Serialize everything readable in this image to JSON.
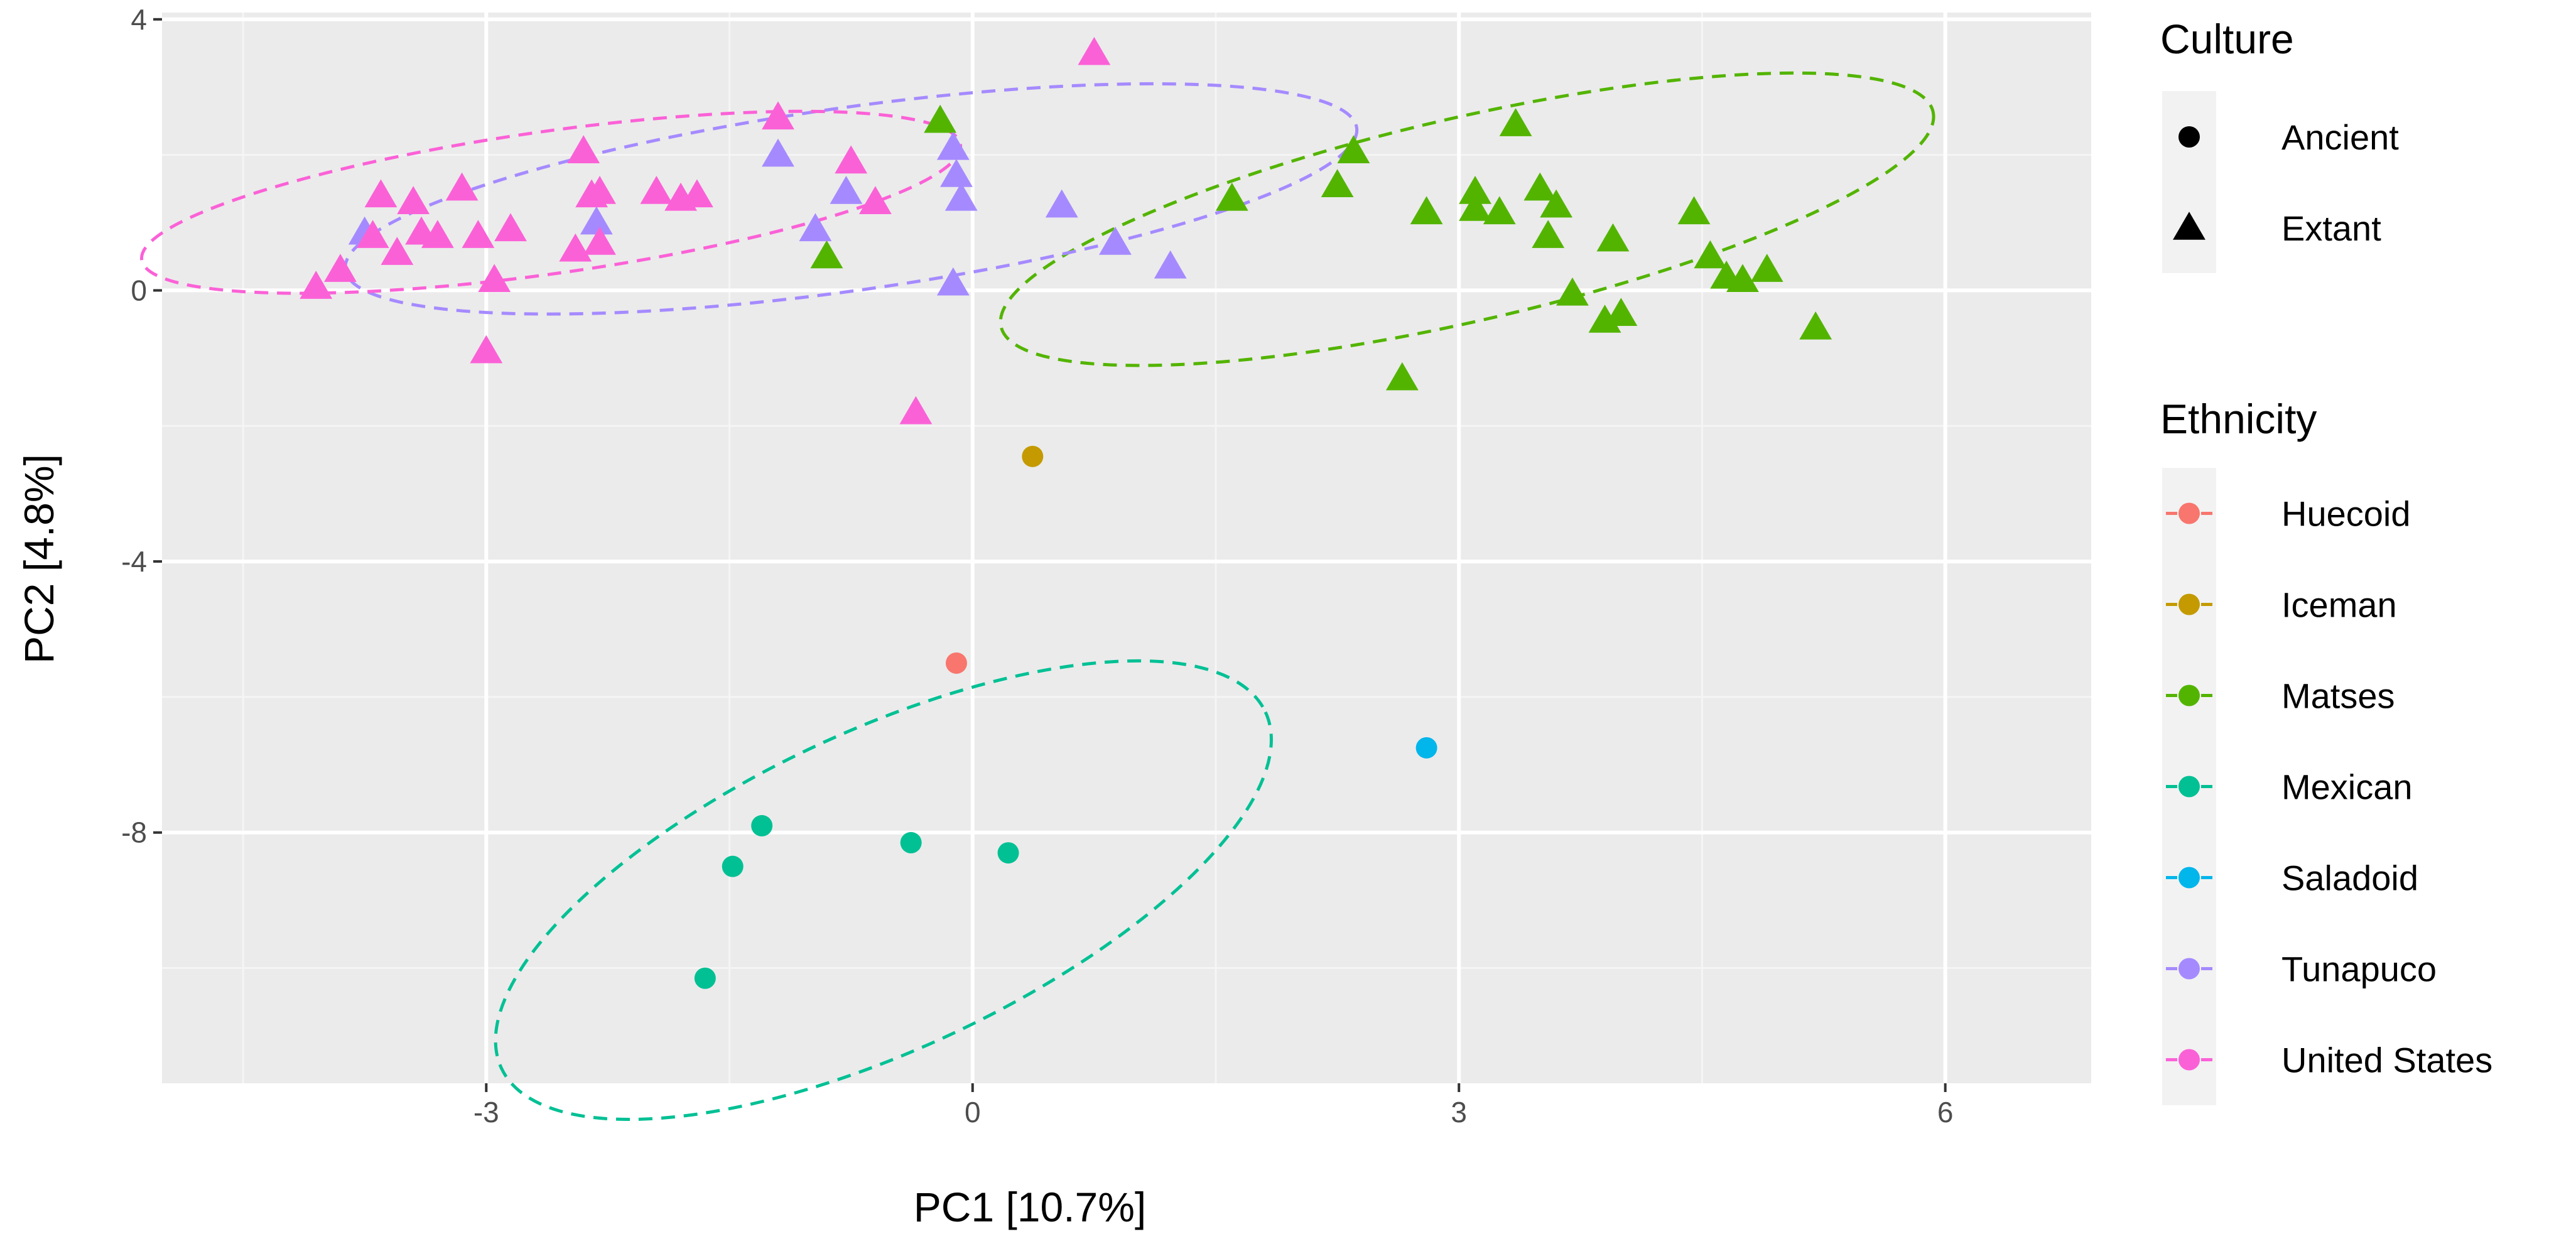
{
  "chart_data": {
    "type": "scatter",
    "title": "",
    "xlabel": "PC1   [10.7%]",
    "ylabel": "PC2   [4.8%]",
    "xlim": [
      -5.0,
      6.9
    ],
    "ylim": [
      -11.7,
      4.1
    ],
    "x_ticks": [
      -3,
      0,
      3,
      6
    ],
    "x_tick_labels": [
      "-3",
      "0",
      "3",
      "6"
    ],
    "y_ticks": [
      -8,
      -4,
      0,
      4
    ],
    "y_tick_labels": [
      "-8",
      "-4",
      "0",
      "4"
    ],
    "grid": true,
    "ellipse_style": "dashed",
    "legend": {
      "culture_title": "Culture",
      "culture_items": [
        {
          "label": "Ancient",
          "shape": "circle"
        },
        {
          "label": "Extant",
          "shape": "triangle"
        }
      ],
      "ethnicity_title": "Ethnicity",
      "ethnicity_items": [
        {
          "label": "Huecoid",
          "color": "#F8766D"
        },
        {
          "label": "Iceman",
          "color": "#C49A00"
        },
        {
          "label": "Matses",
          "color": "#53B400"
        },
        {
          "label": "Mexican",
          "color": "#00C094"
        },
        {
          "label": "Saladoid",
          "color": "#00B6EB"
        },
        {
          "label": "Tunapuco",
          "color": "#A58AFF"
        },
        {
          "label": "United States",
          "color": "#FB61D7"
        }
      ]
    },
    "series": [
      {
        "name": "Huecoid",
        "culture": "Ancient",
        "color": "#F8766D",
        "points": [
          [
            -0.1,
            -5.5
          ]
        ]
      },
      {
        "name": "Iceman",
        "culture": "Ancient",
        "color": "#C49A00",
        "points": [
          [
            0.37,
            -2.45
          ]
        ]
      },
      {
        "name": "Matses",
        "culture": "Extant",
        "color": "#53B400",
        "points": [
          [
            -0.2,
            2.5
          ],
          [
            -0.9,
            0.5
          ],
          [
            1.6,
            1.35
          ],
          [
            2.25,
            1.55
          ],
          [
            2.35,
            2.05
          ],
          [
            2.65,
            -1.3
          ],
          [
            2.8,
            1.15
          ],
          [
            3.1,
            1.45
          ],
          [
            3.1,
            1.2
          ],
          [
            3.25,
            1.15
          ],
          [
            3.35,
            2.45
          ],
          [
            3.5,
            1.5
          ],
          [
            3.55,
            0.8
          ],
          [
            3.6,
            1.25
          ],
          [
            3.7,
            -0.05
          ],
          [
            3.9,
            -0.45
          ],
          [
            3.95,
            0.75
          ],
          [
            4.0,
            -0.35
          ],
          [
            4.45,
            1.15
          ],
          [
            4.55,
            0.5
          ],
          [
            4.65,
            0.2
          ],
          [
            4.75,
            0.15
          ],
          [
            4.9,
            0.3
          ],
          [
            5.2,
            -0.55
          ]
        ],
        "ellipse": {
          "cx": 3.05,
          "cy": 1.05,
          "rx": 2.95,
          "ry": 1.5,
          "angle": -13
        }
      },
      {
        "name": "Mexican",
        "culture": "Ancient",
        "color": "#00C094",
        "points": [
          [
            -1.65,
            -10.15
          ],
          [
            -1.48,
            -8.5
          ],
          [
            -1.3,
            -7.9
          ],
          [
            -0.38,
            -8.15
          ],
          [
            0.22,
            -8.3
          ]
        ],
        "ellipse": {
          "cx": -0.55,
          "cy": -8.85,
          "rx": 2.6,
          "ry": 2.35,
          "angle": -25
        }
      },
      {
        "name": "Saladoid",
        "culture": "Ancient",
        "color": "#00B6EB",
        "points": [
          [
            2.8,
            -6.75
          ]
        ]
      },
      {
        "name": "Tunapuco",
        "culture": "Extant",
        "color": "#A58AFF",
        "points": [
          [
            -3.75,
            0.85
          ],
          [
            -2.32,
            1.0
          ],
          [
            -1.2,
            2.0
          ],
          [
            -0.97,
            0.9
          ],
          [
            -0.78,
            1.45
          ],
          [
            -0.12,
            2.1
          ],
          [
            -0.1,
            1.7
          ],
          [
            -0.07,
            1.35
          ],
          [
            -0.12,
            0.1
          ],
          [
            0.55,
            1.25
          ],
          [
            0.88,
            0.7
          ],
          [
            1.22,
            0.35
          ]
        ],
        "ellipse": {
          "cx": -0.75,
          "cy": 1.35,
          "rx": 3.15,
          "ry": 1.35,
          "angle": -8
        }
      },
      {
        "name": "United States",
        "culture": "Extant",
        "color": "#FB61D7",
        "points": [
          [
            -4.05,
            0.05
          ],
          [
            -3.9,
            0.3
          ],
          [
            -3.7,
            0.8
          ],
          [
            -3.65,
            1.4
          ],
          [
            -3.55,
            0.55
          ],
          [
            -3.45,
            1.3
          ],
          [
            -3.4,
            0.85
          ],
          [
            -3.3,
            0.8
          ],
          [
            -3.15,
            1.5
          ],
          [
            -3.05,
            0.8
          ],
          [
            -3.0,
            -0.9
          ],
          [
            -2.95,
            0.15
          ],
          [
            -2.85,
            0.9
          ],
          [
            -2.45,
            0.6
          ],
          [
            -2.4,
            2.05
          ],
          [
            -2.35,
            1.4
          ],
          [
            -2.3,
            1.45
          ],
          [
            -2.3,
            0.7
          ],
          [
            -1.95,
            1.45
          ],
          [
            -1.8,
            1.35
          ],
          [
            -1.7,
            1.4
          ],
          [
            -1.2,
            2.55
          ],
          [
            -0.75,
            1.9
          ],
          [
            -0.6,
            1.3
          ],
          [
            -0.35,
            -1.8
          ],
          [
            0.75,
            3.5
          ]
        ],
        "ellipse": {
          "cx": -2.6,
          "cy": 1.3,
          "rx": 2.55,
          "ry": 1.05,
          "angle": -8
        }
      }
    ]
  }
}
